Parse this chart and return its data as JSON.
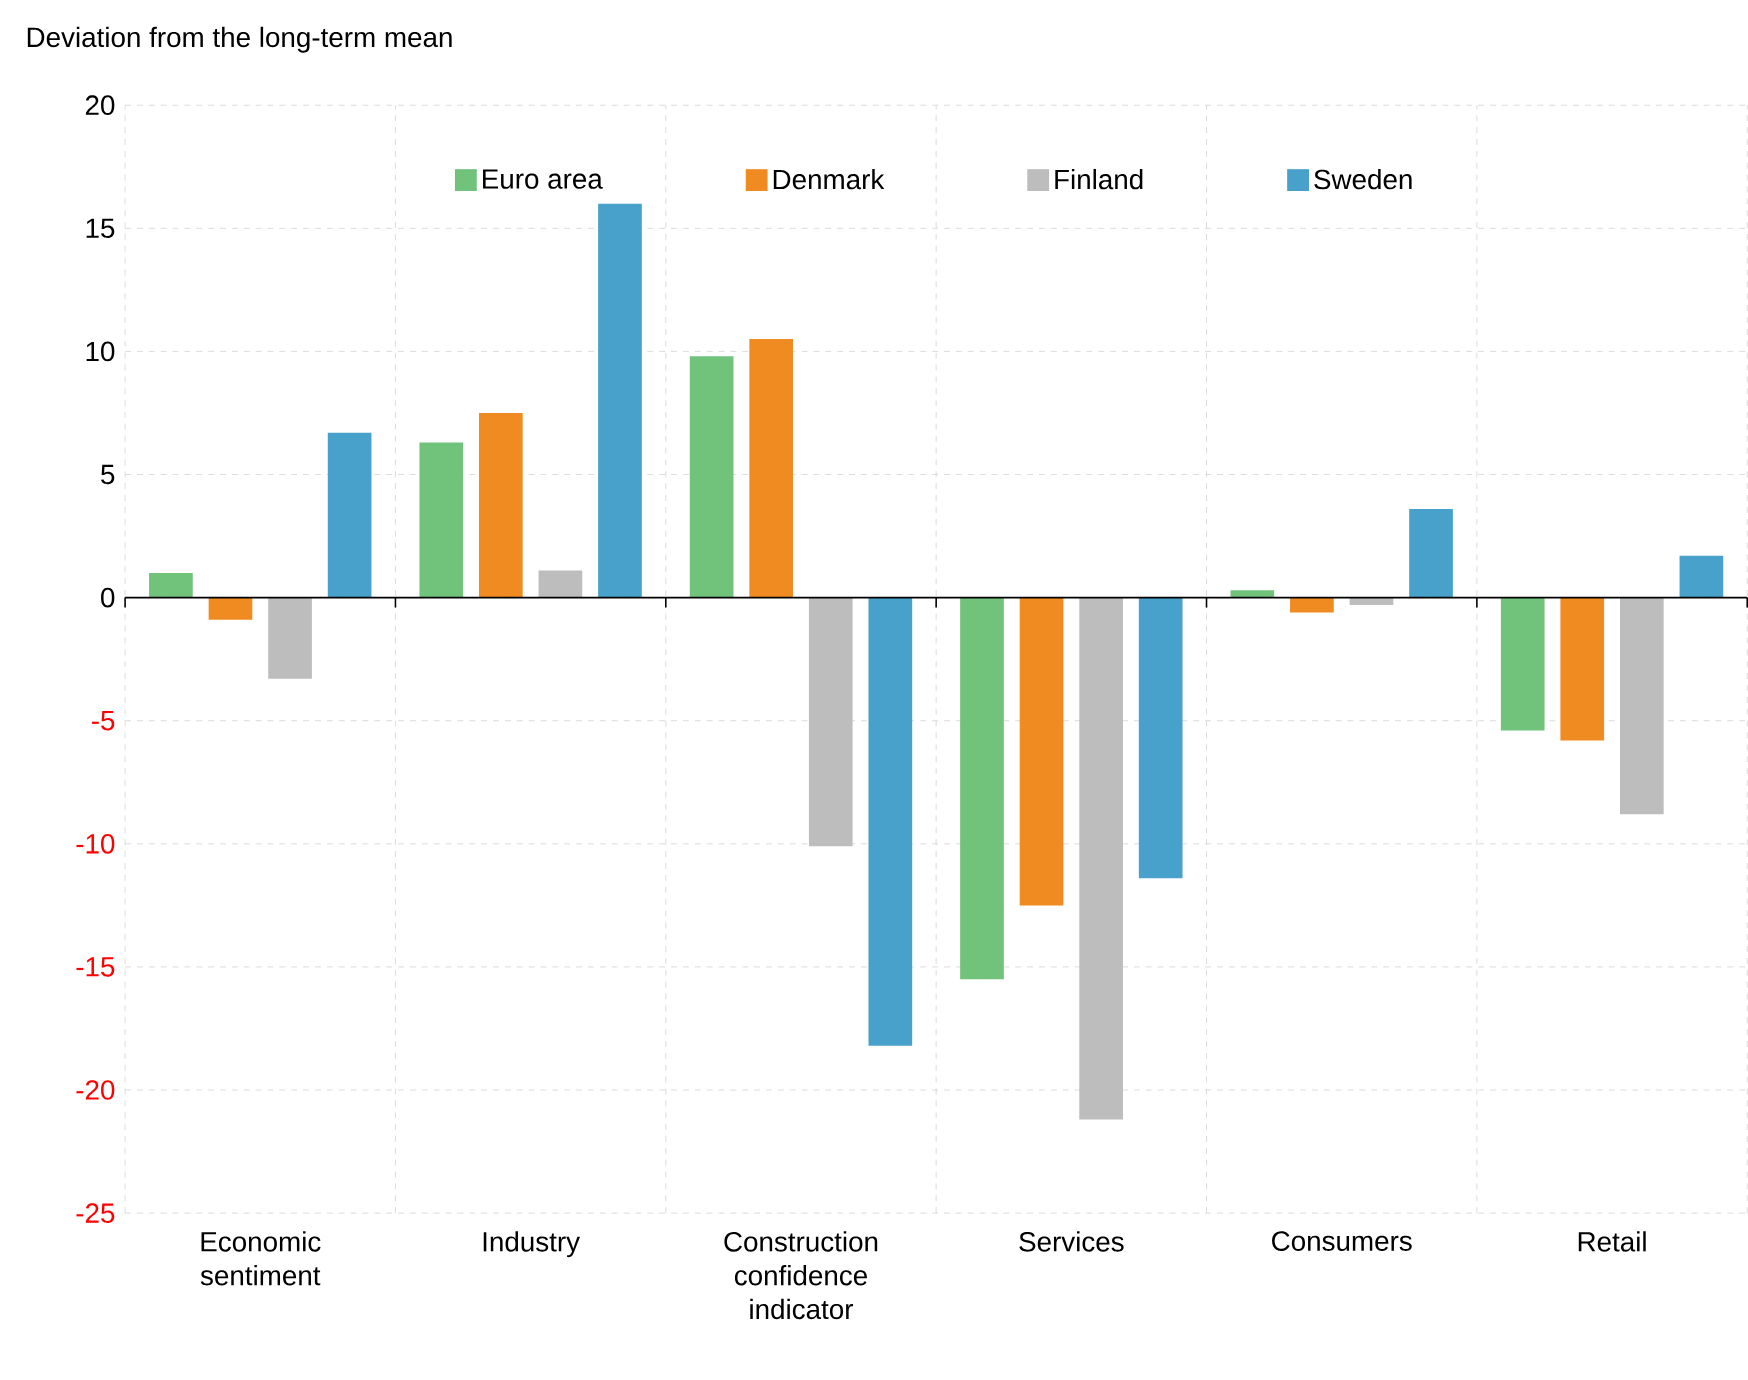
{
  "chart_data": {
    "type": "bar",
    "ylabel": "Deviation from the long-term mean",
    "categories": [
      "Economic sentiment",
      "Industry",
      "Construction confidence indicator",
      "Services",
      "Consumers",
      "Retail"
    ],
    "series": [
      {
        "name": "Euro area",
        "color": "#71c27a",
        "values": [
          1.0,
          6.3,
          9.8,
          -15.5,
          0.3,
          -5.4
        ]
      },
      {
        "name": "Denmark",
        "color": "#f08b22",
        "values": [
          -0.9,
          7.5,
          10.5,
          -12.5,
          -0.6,
          -5.8
        ]
      },
      {
        "name": "Finland",
        "color": "#bdbdbd",
        "values": [
          -3.3,
          1.1,
          -10.1,
          -21.2,
          -0.3,
          -8.8
        ]
      },
      {
        "name": "Sweden",
        "color": "#47a1cb",
        "values": [
          6.7,
          16.0,
          -18.2,
          -11.4,
          3.6,
          1.7
        ]
      }
    ],
    "ylim": [
      -25,
      20
    ],
    "yticks": [
      -25,
      -20,
      -15,
      -10,
      -5,
      0,
      5,
      10,
      15,
      20
    ],
    "grid": true,
    "legend": "top"
  }
}
